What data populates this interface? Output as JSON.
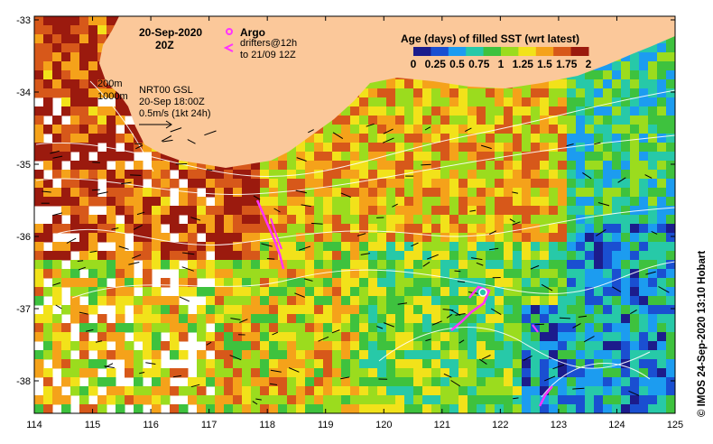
{
  "title": {
    "date": "20-Sep-2020",
    "time": "20Z"
  },
  "legend": {
    "argo_label": "Argo",
    "drifters_label": "drifters@12h",
    "drifters_range": "to 21/09 12Z",
    "colorbar_title": "Age (days) of filled SST (wrt latest)",
    "colorbar_ticks": [
      "0",
      "0.25",
      "0.5",
      "0.75",
      "1",
      "1.25",
      "1.5",
      "1.75",
      "2"
    ],
    "colorbar_colors": [
      "#1c1c8c",
      "#1a4fd1",
      "#1c9cf0",
      "#27c9a8",
      "#3ec23e",
      "#9bdc1e",
      "#f2e21a",
      "#f5a21a",
      "#d7581a",
      "#9b1a0e"
    ]
  },
  "contours": {
    "depth_200": "200m",
    "depth_1000": "1000m"
  },
  "currents": {
    "model": "NRT00 GSL",
    "datetime": "20-Sep 18:00Z",
    "scale": "0.5m/s (1kt 24h)"
  },
  "credit": "© IMOS 24-Sep-2020 13:10 Hobart",
  "axes": {
    "lon_ticks": [
      "114",
      "115",
      "116",
      "117",
      "118",
      "119",
      "120",
      "121",
      "122",
      "123",
      "124",
      "125"
    ],
    "lat_ticks": [
      "-33",
      "-34",
      "-35",
      "-36",
      "-37",
      "-38"
    ]
  },
  "colors": {
    "land": "#fbc89a",
    "argo_marker": "#ff33ff",
    "drifter": "#ff33ff"
  }
}
